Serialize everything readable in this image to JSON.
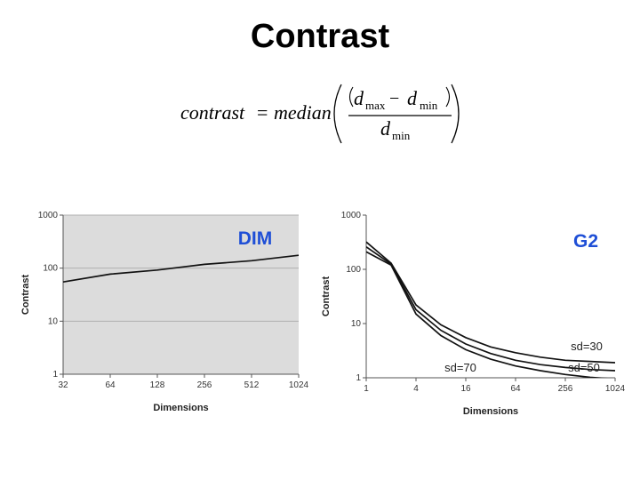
{
  "slide": {
    "title": "Contrast"
  },
  "formula": {
    "lhs": "contrast",
    "eq": "=",
    "func": "median",
    "num_a": "d",
    "num_a_sub": "max",
    "minus": "−",
    "num_b": "d",
    "num_b_sub": "min",
    "den": "d",
    "den_sub": "min"
  },
  "colors": {
    "accent": "#1f4fd6",
    "line": "#111111",
    "plot_bg": "#dcdcdc",
    "grid": "#b0b0b0"
  },
  "chart_data": [
    {
      "type": "line",
      "label": "DIM",
      "xlabel": "Dimensions",
      "ylabel": "Contrast",
      "x_scale": "log2",
      "y_scale": "log10",
      "xlim": [
        32,
        1024
      ],
      "ylim": [
        1,
        1000
      ],
      "xticks": [
        32,
        64,
        128,
        256,
        512,
        1024
      ],
      "xtick_labels": [
        "32",
        "64",
        "128",
        "256",
        "512",
        "1024"
      ],
      "yticks": [
        1,
        10,
        100,
        1000
      ],
      "ytick_labels": [
        "1",
        "10",
        "100",
        "1000"
      ],
      "grid": true,
      "series": [
        {
          "x": [
            32,
            64,
            128,
            256,
            512,
            1024
          ],
          "y": [
            55,
            77,
            92,
            118,
            138,
            175
          ]
        }
      ]
    },
    {
      "type": "line",
      "label": "G2",
      "xlabel": "Dimensions",
      "ylabel": "Contrast",
      "x_scale": "log2",
      "y_scale": "log10",
      "xlim": [
        1,
        1024
      ],
      "ylim": [
        1,
        1000
      ],
      "xticks": [
        1,
        4,
        16,
        64,
        256,
        1024
      ],
      "xtick_labels": [
        "1",
        "4",
        "16",
        "64",
        "256",
        "1024"
      ],
      "yticks": [
        1,
        10,
        100,
        1000
      ],
      "ytick_labels": [
        "1",
        "10",
        "100",
        "1000"
      ],
      "grid": false,
      "series": [
        {
          "name": "sd=30",
          "x": [
            1,
            2,
            4,
            8,
            16,
            32,
            64,
            128,
            256,
            512,
            1024
          ],
          "y": [
            320,
            130,
            22,
            9.5,
            5.5,
            3.7,
            2.9,
            2.4,
            2.1,
            2.0,
            1.9
          ]
        },
        {
          "name": "sd=50",
          "x": [
            1,
            2,
            4,
            8,
            16,
            32,
            64,
            128,
            256,
            512,
            1024
          ],
          "y": [
            260,
            125,
            18,
            7.5,
            4.2,
            2.8,
            2.1,
            1.75,
            1.55,
            1.42,
            1.35
          ]
        },
        {
          "name": "sd=70",
          "x": [
            1,
            2,
            4,
            8,
            16,
            32,
            64,
            128,
            256,
            512,
            1024
          ],
          "y": [
            210,
            120,
            15,
            6,
            3.3,
            2.2,
            1.65,
            1.35,
            1.15,
            1.02,
            0.95
          ]
        }
      ]
    }
  ]
}
